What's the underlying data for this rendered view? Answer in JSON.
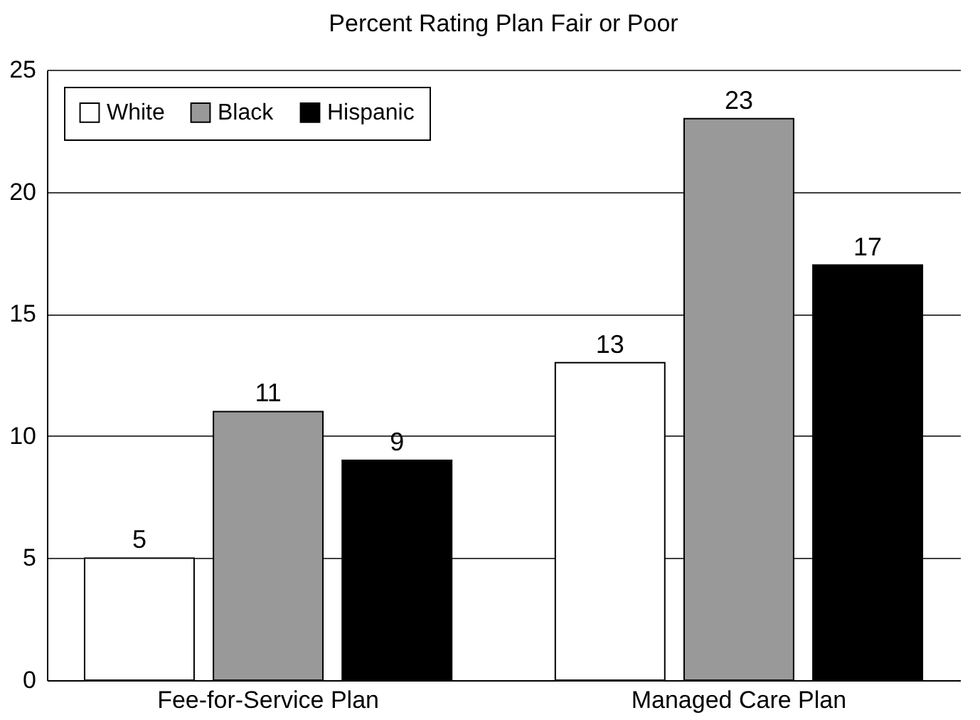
{
  "chart_data": {
    "type": "bar",
    "title": "Percent Rating Plan Fair or Poor",
    "categories": [
      "Fee-for-Service Plan",
      "Managed Care Plan"
    ],
    "series": [
      {
        "name": "White",
        "color": "#ffffff",
        "values": [
          5,
          13
        ]
      },
      {
        "name": "Black",
        "color": "#999999",
        "values": [
          11,
          23
        ]
      },
      {
        "name": "Hispanic",
        "color": "#000000",
        "values": [
          9,
          17
        ]
      }
    ],
    "ylim": [
      0,
      25
    ],
    "yticks": [
      0,
      5,
      10,
      15,
      20,
      25
    ],
    "grid": "y",
    "legend": "top left",
    "data_labels": true
  }
}
